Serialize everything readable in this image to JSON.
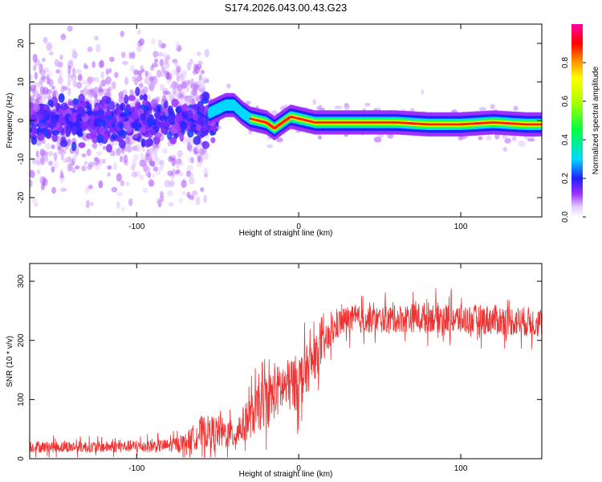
{
  "chart_data": [
    {
      "type": "heatmap",
      "title": "S174.2026.043.00.43.G23",
      "xlabel": "Height of straight line (km)",
      "ylabel": "Frequency (Hz)",
      "xlim": [
        -166,
        150
      ],
      "ylim": [
        -25,
        25
      ],
      "xticks": [
        -100,
        0,
        100
      ],
      "yticks": [
        -20,
        -10,
        0,
        10,
        20
      ],
      "xtick_labels": [
        "-100",
        "0",
        "100"
      ],
      "ytick_labels": [
        "-20",
        "-10",
        "0",
        "10",
        "20"
      ],
      "colorbar": {
        "label": "Normalized spectral amplitude",
        "range": [
          0.0,
          1.0
        ],
        "ticks": [
          0.0,
          0.2,
          0.4,
          0.6,
          0.8
        ],
        "tick_labels": [
          "0.0",
          "0.2",
          "0.4",
          "0.6",
          "0.8"
        ],
        "colormap": "rainbow (violet-blue-cyan-green-yellow-red-magenta)"
      },
      "ridge": {
        "x": [
          -166,
          -140,
          -110,
          -80,
          -55,
          -45,
          -40,
          -35,
          -30,
          -20,
          -15,
          -10,
          -5,
          0,
          10,
          20,
          40,
          60,
          80,
          100,
          120,
          140,
          150
        ],
        "freq": [
          0,
          0,
          0,
          0,
          2,
          4,
          4,
          2,
          0.5,
          -0.5,
          -2,
          -0.5,
          1,
          0.5,
          -0.5,
          -0.5,
          -0.5,
          -0.5,
          -1,
          -1,
          -0.5,
          -1,
          -1
        ]
      }
    },
    {
      "type": "line",
      "xlabel": "Height of straight line (km)",
      "ylabel": "SNR (10 * v/v)",
      "xlim": [
        -166,
        150
      ],
      "ylim": [
        0,
        330
      ],
      "xticks": [
        -100,
        0,
        100
      ],
      "yticks": [
        0,
        100,
        200,
        300
      ],
      "xtick_labels": [
        "-100",
        "0",
        "100"
      ],
      "ytick_labels": [
        "0",
        "100",
        "200",
        "300"
      ],
      "line_color": "#ee3333",
      "envelope": {
        "x": [
          -166,
          -120,
          -80,
          -70,
          -60,
          -50,
          -40,
          -30,
          -20,
          -10,
          0,
          10,
          20,
          25,
          30,
          50,
          80,
          100,
          120,
          150
        ],
        "mean": [
          20,
          20,
          22,
          28,
          45,
          45,
          40,
          70,
          100,
          120,
          130,
          170,
          210,
          230,
          235,
          235,
          240,
          235,
          235,
          230
        ],
        "spread": [
          12,
          12,
          14,
          18,
          35,
          35,
          30,
          45,
          55,
          55,
          60,
          45,
          30,
          30,
          30,
          28,
          32,
          32,
          32,
          32
        ]
      }
    }
  ]
}
